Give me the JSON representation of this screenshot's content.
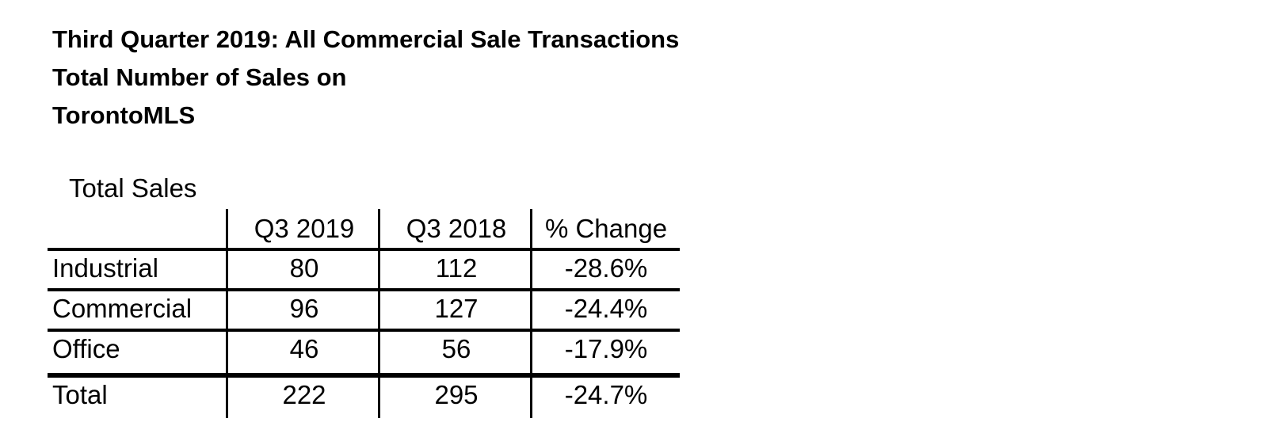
{
  "heading": {
    "line1": "Third Quarter 2019: All Commercial Sale Transactions",
    "line2": "Total Number of Sales on",
    "line3": "TorontoMLS"
  },
  "table": {
    "caption": "Total Sales",
    "columns": [
      "",
      "Q3 2019",
      "Q3 2018",
      "% Change"
    ],
    "rows": [
      {
        "label": "Industrial",
        "q3_2019": "80",
        "q3_2018": "112",
        "change": "-28.6%"
      },
      {
        "label": "Commercial",
        "q3_2019": "96",
        "q3_2018": "127",
        "change": "-24.4%"
      },
      {
        "label": "Office",
        "q3_2019": "46",
        "q3_2018": "56",
        "change": "-17.9%"
      }
    ],
    "total": {
      "label": "Total",
      "q3_2019": "222",
      "q3_2018": "295",
      "change": "-24.7%"
    }
  }
}
